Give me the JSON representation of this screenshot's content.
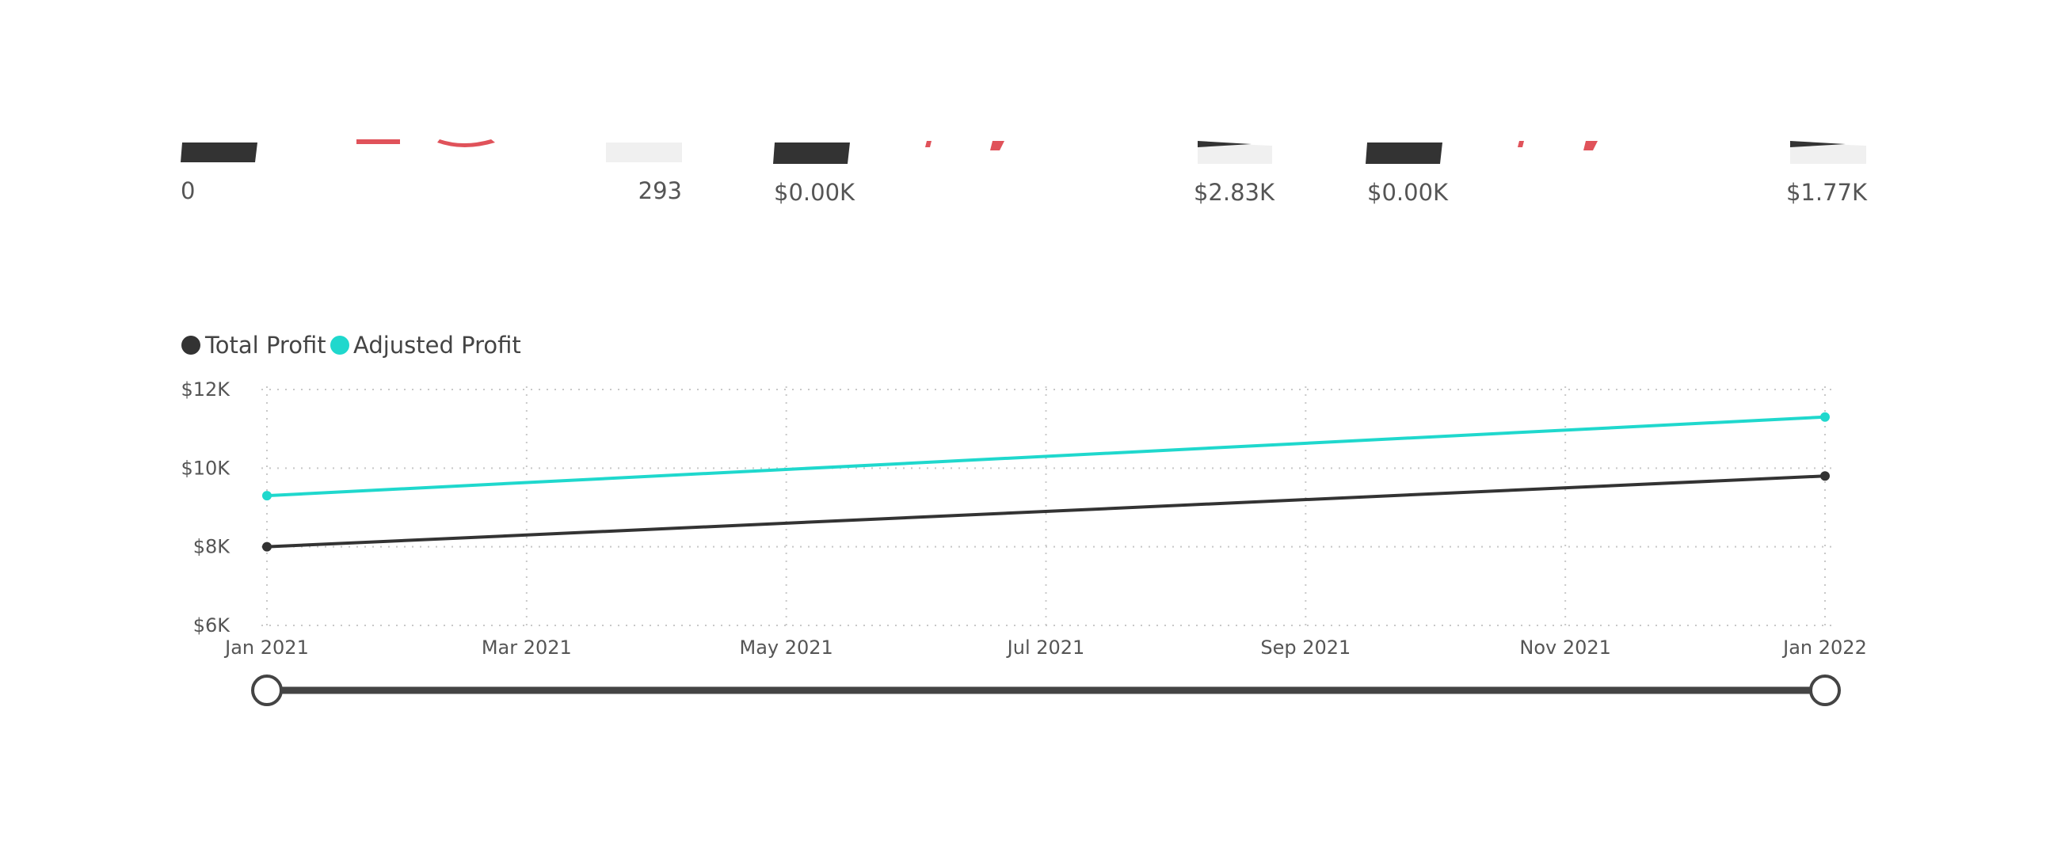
{
  "kpi_cards": [
    {
      "left_value": "0",
      "right_value": "293"
    },
    {
      "left_value": "$0.00K",
      "right_value": "$2.83K"
    },
    {
      "left_value": "$0.00K",
      "right_value": "$1.77K"
    }
  ],
  "colors": {
    "total_profit": "#333333",
    "adjusted_profit": "#1fd8cd",
    "kpi_dark": "#333333",
    "kpi_light": "#f0f0f0",
    "kpi_accent": "#e0525a",
    "slider": "#444444"
  },
  "chart_data": {
    "type": "line",
    "x": [
      "2021-01-01",
      "2022-01-01"
    ],
    "xticks": [
      "Jan 2021",
      "Mar 2021",
      "May 2021",
      "Jul 2021",
      "Sep 2021",
      "Nov 2021",
      "Jan 2022"
    ],
    "yticks": [
      "$12K",
      "$10K",
      "$8K",
      "$6K"
    ],
    "ylim": [
      6000,
      12000
    ],
    "xlim": [
      "2021-01-01",
      "2022-01-01"
    ],
    "grid": true,
    "legend_position": "top-left",
    "series": [
      {
        "name": "Total Profit",
        "values": [
          8000,
          9800
        ]
      },
      {
        "name": "Adjusted Profit",
        "values": [
          9300,
          11300
        ]
      }
    ],
    "slider": {
      "start": "Jan 2021",
      "end": "Jan 2022"
    }
  }
}
